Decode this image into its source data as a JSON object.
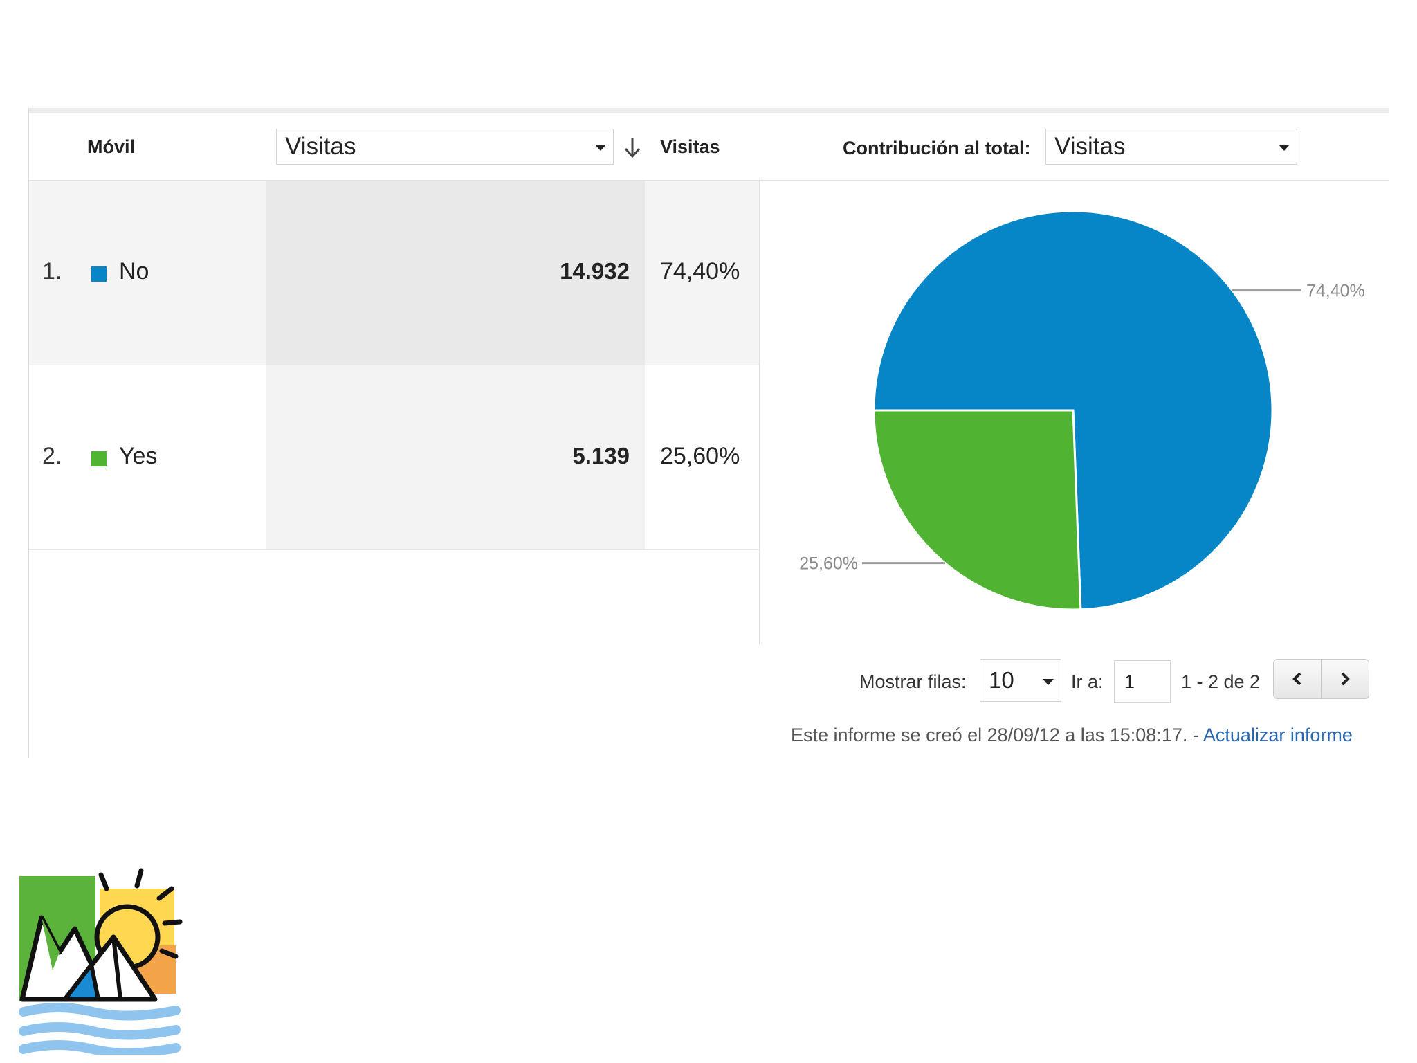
{
  "header": {
    "dimension_label": "Móvil",
    "metric_select": "Visitas",
    "metric_column": "Visitas",
    "contribution_label": "Contribución al total:",
    "contribution_select": "Visitas"
  },
  "rows": [
    {
      "index": "1.",
      "label": "No",
      "value": "14.932",
      "percent": "74,40%",
      "color": "#0686c6"
    },
    {
      "index": "2.",
      "label": "Yes",
      "value": "5.139",
      "percent": "25,60%",
      "color": "#50b432"
    }
  ],
  "chart_data": {
    "type": "pie",
    "categories": [
      "No",
      "Yes"
    ],
    "values": [
      74.4,
      25.6
    ],
    "labels": [
      "74,40%",
      "25,60%"
    ],
    "colors": [
      "#0686c6",
      "#50b432"
    ]
  },
  "pager": {
    "show_rows_label": "Mostrar filas:",
    "rows_value": "10",
    "goto_label": "Ir a:",
    "goto_value": "1",
    "range_text": "1 - 2 de 2"
  },
  "footer": {
    "text": "Este informe se creó el 28/09/12 a las 15:08:17. - ",
    "link": "Actualizar informe"
  },
  "icons": {
    "sort": "arrow-down-icon",
    "prev": "chevron-left-icon",
    "next": "chevron-right-icon",
    "logo": "mountain-sun-tent-logo"
  }
}
